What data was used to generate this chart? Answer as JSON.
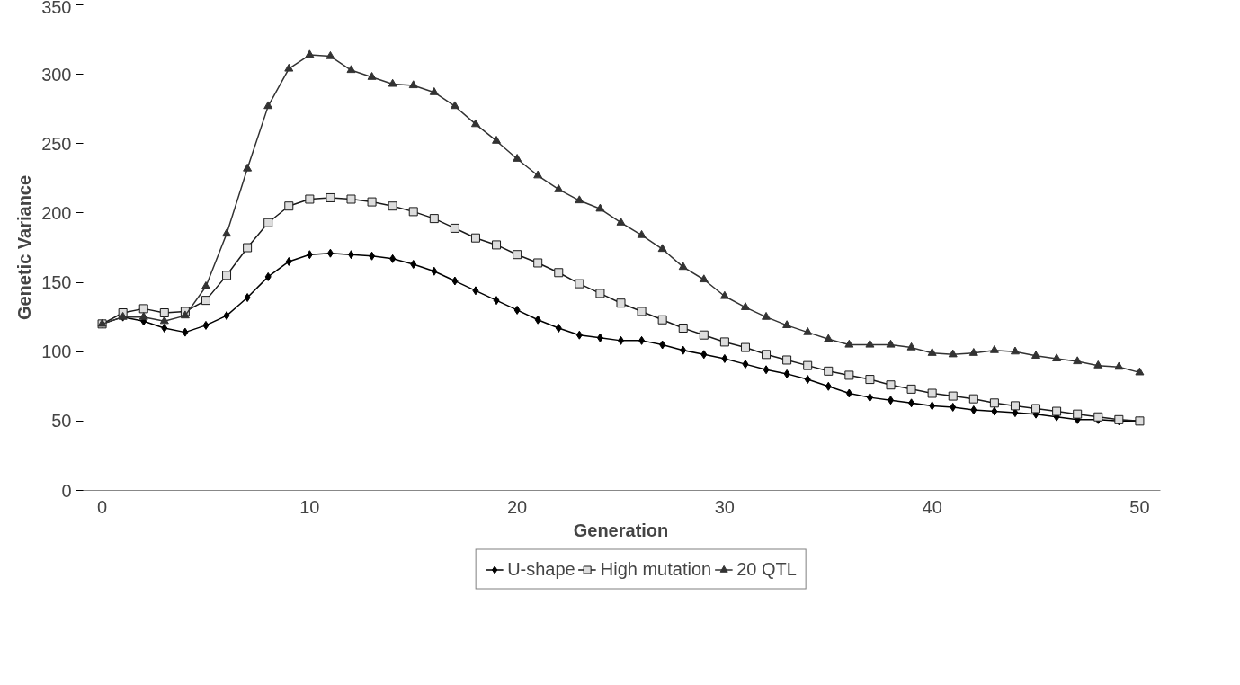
{
  "chart_data": {
    "type": "line",
    "xlabel": "Generation",
    "ylabel": "Genetic Variance",
    "xlim": [
      -1,
      51
    ],
    "ylim": [
      0,
      350
    ],
    "xticks": [
      0,
      10,
      20,
      30,
      40,
      50
    ],
    "yticks": [
      0,
      50,
      100,
      150,
      200,
      250,
      300,
      350
    ],
    "grid": false,
    "legend": "bottom",
    "line_style": "solid",
    "x": [
      0,
      1,
      2,
      3,
      4,
      5,
      6,
      7,
      8,
      9,
      10,
      11,
      12,
      13,
      14,
      15,
      16,
      17,
      18,
      19,
      20,
      21,
      22,
      23,
      24,
      25,
      26,
      27,
      28,
      29,
      30,
      31,
      32,
      33,
      34,
      35,
      36,
      37,
      38,
      39,
      40,
      41,
      42,
      43,
      44,
      45,
      46,
      47,
      48,
      49,
      50
    ],
    "series": [
      {
        "name": "U-shape",
        "color": "#000000",
        "marker": "diamond",
        "values": [
          120,
          125,
          122,
          117,
          114,
          119,
          126,
          139,
          154,
          165,
          170,
          171,
          170,
          169,
          167,
          163,
          158,
          151,
          144,
          137,
          130,
          123,
          117,
          112,
          110,
          108,
          108,
          105,
          101,
          98,
          95,
          91,
          87,
          84,
          80,
          75,
          70,
          67,
          65,
          63,
          61,
          60,
          58,
          57,
          56,
          55,
          53,
          51,
          51,
          50,
          50
        ]
      },
      {
        "name": "High mutation",
        "color": "#1a1a1a",
        "marker": "square",
        "values": [
          120,
          128,
          131,
          128,
          129,
          137,
          155,
          175,
          193,
          205,
          210,
          211,
          210,
          208,
          205,
          201,
          196,
          189,
          182,
          177,
          170,
          164,
          157,
          149,
          142,
          135,
          129,
          123,
          117,
          112,
          107,
          103,
          98,
          94,
          90,
          86,
          83,
          80,
          76,
          73,
          70,
          68,
          66,
          63,
          61,
          59,
          57,
          55,
          53,
          51,
          50
        ]
      },
      {
        "name": "20 QTL",
        "color": "#333333",
        "marker": "triangle",
        "values": [
          120,
          125,
          125,
          122,
          126,
          147,
          185,
          232,
          277,
          304,
          314,
          313,
          303,
          298,
          293,
          292,
          287,
          277,
          264,
          252,
          239,
          227,
          217,
          209,
          203,
          193,
          184,
          174,
          161,
          152,
          140,
          132,
          125,
          119,
          114,
          109,
          105,
          105,
          105,
          103,
          99,
          98,
          99,
          101,
          100,
          97,
          95,
          93,
          90,
          89,
          85
        ]
      }
    ]
  }
}
